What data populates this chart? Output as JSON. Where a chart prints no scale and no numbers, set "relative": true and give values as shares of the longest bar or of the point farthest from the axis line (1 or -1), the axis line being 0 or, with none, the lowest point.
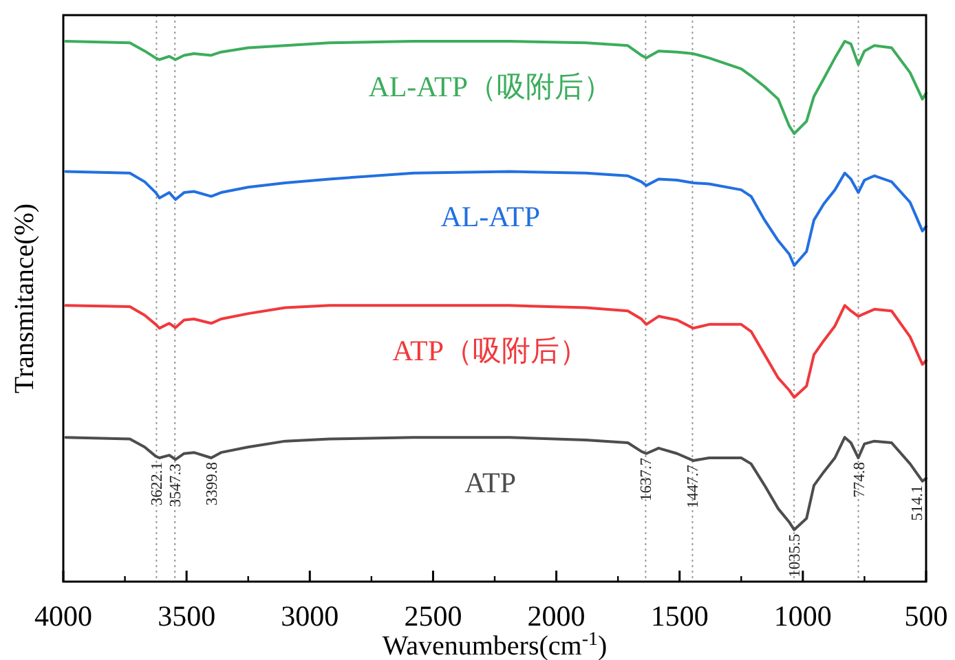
{
  "chart_data": {
    "type": "line",
    "relative": true,
    "xlabel": "Wavenumbers(cm$^{-1}$)",
    "ylabel": "Transmitance(%)",
    "legend": false,
    "xlim": [
      4000,
      500
    ],
    "xticks": [
      4000,
      3500,
      3000,
      2500,
      2000,
      1500,
      1000,
      500
    ],
    "x": [
      3990,
      3730,
      3670,
      3625,
      3610,
      3570,
      3545,
      3510,
      3470,
      3400,
      3360,
      3250,
      3100,
      2920,
      2580,
      2190,
      1880,
      1710,
      1655,
      1635,
      1585,
      1510,
      1445,
      1380,
      1250,
      1210,
      1155,
      1100,
      1055,
      1035,
      985,
      955,
      915,
      870,
      830,
      805,
      775,
      750,
      710,
      640,
      565,
      515,
      500
    ],
    "series": [
      {
        "name": "ATP",
        "color": "#4d4d4d",
        "values": [
          0.267,
          0.264,
          0.249,
          0.232,
          0.229,
          0.234,
          0.226,
          0.237,
          0.239,
          0.229,
          0.239,
          0.249,
          0.26,
          0.264,
          0.267,
          0.267,
          0.262,
          0.257,
          0.241,
          0.237,
          0.247,
          0.237,
          0.224,
          0.229,
          0.229,
          0.218,
          0.178,
          0.135,
          0.11,
          0.096,
          0.117,
          0.178,
          0.203,
          0.229,
          0.267,
          0.257,
          0.229,
          0.255,
          0.26,
          0.257,
          0.218,
          0.186,
          0.191
        ]
      },
      {
        "name": "ATP（吸附后）",
        "color": "#f0393c",
        "values": [
          0.511,
          0.509,
          0.493,
          0.476,
          0.469,
          0.478,
          0.47,
          0.484,
          0.486,
          0.478,
          0.486,
          0.496,
          0.507,
          0.511,
          0.511,
          0.511,
          0.507,
          0.501,
          0.486,
          0.476,
          0.491,
          0.484,
          0.469,
          0.476,
          0.476,
          0.463,
          0.42,
          0.377,
          0.354,
          0.341,
          0.362,
          0.42,
          0.446,
          0.473,
          0.511,
          0.501,
          0.491,
          0.496,
          0.504,
          0.501,
          0.453,
          0.402,
          0.409
        ]
      },
      {
        "name": "AL-ATP",
        "color": "#2270e0",
        "values": [
          0.759,
          0.756,
          0.74,
          0.72,
          0.71,
          0.72,
          0.707,
          0.72,
          0.722,
          0.713,
          0.72,
          0.73,
          0.738,
          0.745,
          0.756,
          0.759,
          0.756,
          0.751,
          0.74,
          0.733,
          0.745,
          0.743,
          0.738,
          0.736,
          0.725,
          0.713,
          0.669,
          0.631,
          0.606,
          0.585,
          0.611,
          0.669,
          0.699,
          0.725,
          0.756,
          0.745,
          0.72,
          0.743,
          0.751,
          0.74,
          0.702,
          0.649,
          0.657
        ]
      },
      {
        "name": "AL-ATP（吸附后）",
        "color": "#3cad5c",
        "values": [
          1,
          0.997,
          0.982,
          0.969,
          0.966,
          0.972,
          0.966,
          0.974,
          0.977,
          0.974,
          0.98,
          0.988,
          0.992,
          0.997,
          1,
          1,
          0.997,
          0.992,
          0.974,
          0.969,
          0.982,
          0.98,
          0.977,
          0.969,
          0.949,
          0.936,
          0.916,
          0.893,
          0.843,
          0.829,
          0.852,
          0.898,
          0.931,
          0.969,
          1,
          0.995,
          0.957,
          0.982,
          0.992,
          0.988,
          0.942,
          0.893,
          0.904
        ]
      }
    ],
    "ref_lines": [
      {
        "axis": "x",
        "value": 3622.1,
        "color": "#999999",
        "line_style": "dotted"
      },
      {
        "axis": "x",
        "value": 3547.3,
        "color": "#999999",
        "line_style": "dotted"
      },
      {
        "axis": "x",
        "value": 1637.7,
        "color": "#999999",
        "line_style": "dotted"
      },
      {
        "axis": "x",
        "value": 1447.7,
        "color": "#999999",
        "line_style": "dotted"
      },
      {
        "axis": "x",
        "value": 1035.5,
        "color": "#999999",
        "line_style": "dotted"
      },
      {
        "axis": "x",
        "value": 774.8,
        "color": "#999999",
        "line_style": "dotted"
      }
    ],
    "annotations": [
      {
        "text": "3622.1",
        "x": 3622.1,
        "y": 0.229
      },
      {
        "text": "3547.3",
        "x": 3547.3,
        "y": 0.226
      },
      {
        "text": "3399.8",
        "x": 3399.8,
        "y": 0.229
      },
      {
        "text": "1637.7",
        "x": 1637.7,
        "y": 0.237
      },
      {
        "text": "1447.7",
        "x": 1447.7,
        "y": 0.224
      },
      {
        "text": "1035.5",
        "x": 1035.5,
        "y": 0.096
      },
      {
        "text": "774.8",
        "x": 774.8,
        "y": 0.229
      },
      {
        "text": "514.1",
        "x": 514.1,
        "y": 0.186
      }
    ]
  }
}
